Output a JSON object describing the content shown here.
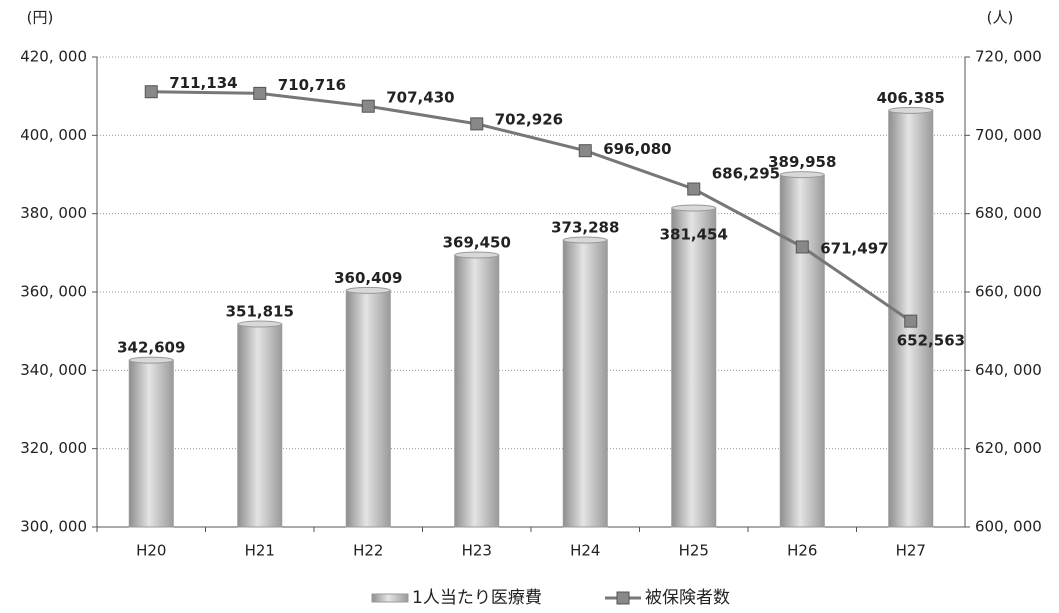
{
  "chart_data": {
    "type": "bar",
    "y_unit": "(円)",
    "y2_unit": "(人)",
    "categories": [
      "H20",
      "H21",
      "H22",
      "H23",
      "H24",
      "H25",
      "H26",
      "H27"
    ],
    "series": [
      {
        "name": "1人当たり医療費",
        "type": "bar",
        "color": "#b8b8b8",
        "values": [
          342609,
          351815,
          360409,
          369450,
          373288,
          381454,
          389958,
          406385
        ],
        "value_labels": [
          "342,609",
          "351,815",
          "360,409",
          "369,450",
          "373,288",
          "381,454",
          "389,958",
          "406,385"
        ]
      },
      {
        "name": "被保険者数",
        "type": "line",
        "axis": "y2",
        "color": "#777777",
        "values": [
          711134,
          710716,
          707430,
          702926,
          696080,
          686295,
          671497,
          652563
        ],
        "value_labels": [
          "711,134",
          "710,716",
          "707,430",
          "702,926",
          "696,080",
          "686,295",
          "671,497",
          "652,563"
        ]
      }
    ],
    "ylim": [
      300000,
      420000
    ],
    "yticks": [
      {
        "value": 300000,
        "label": "300, 000"
      },
      {
        "value": 320000,
        "label": "320, 000"
      },
      {
        "value": 340000,
        "label": "340, 000"
      },
      {
        "value": 360000,
        "label": "360, 000"
      },
      {
        "value": 380000,
        "label": "380, 000"
      },
      {
        "value": 400000,
        "label": "400, 000"
      },
      {
        "value": 420000,
        "label": "420, 000"
      }
    ],
    "y2lim": [
      600000,
      720000
    ],
    "y2ticks": [
      {
        "value": 600000,
        "label": "600, 000"
      },
      {
        "value": 620000,
        "label": "620, 000"
      },
      {
        "value": 640000,
        "label": "640, 000"
      },
      {
        "value": 660000,
        "label": "660, 000"
      },
      {
        "value": 680000,
        "label": "680, 000"
      },
      {
        "value": 700000,
        "label": "700, 000"
      },
      {
        "value": 720000,
        "label": "720, 000"
      }
    ],
    "grid": true,
    "legend": "bottom"
  }
}
